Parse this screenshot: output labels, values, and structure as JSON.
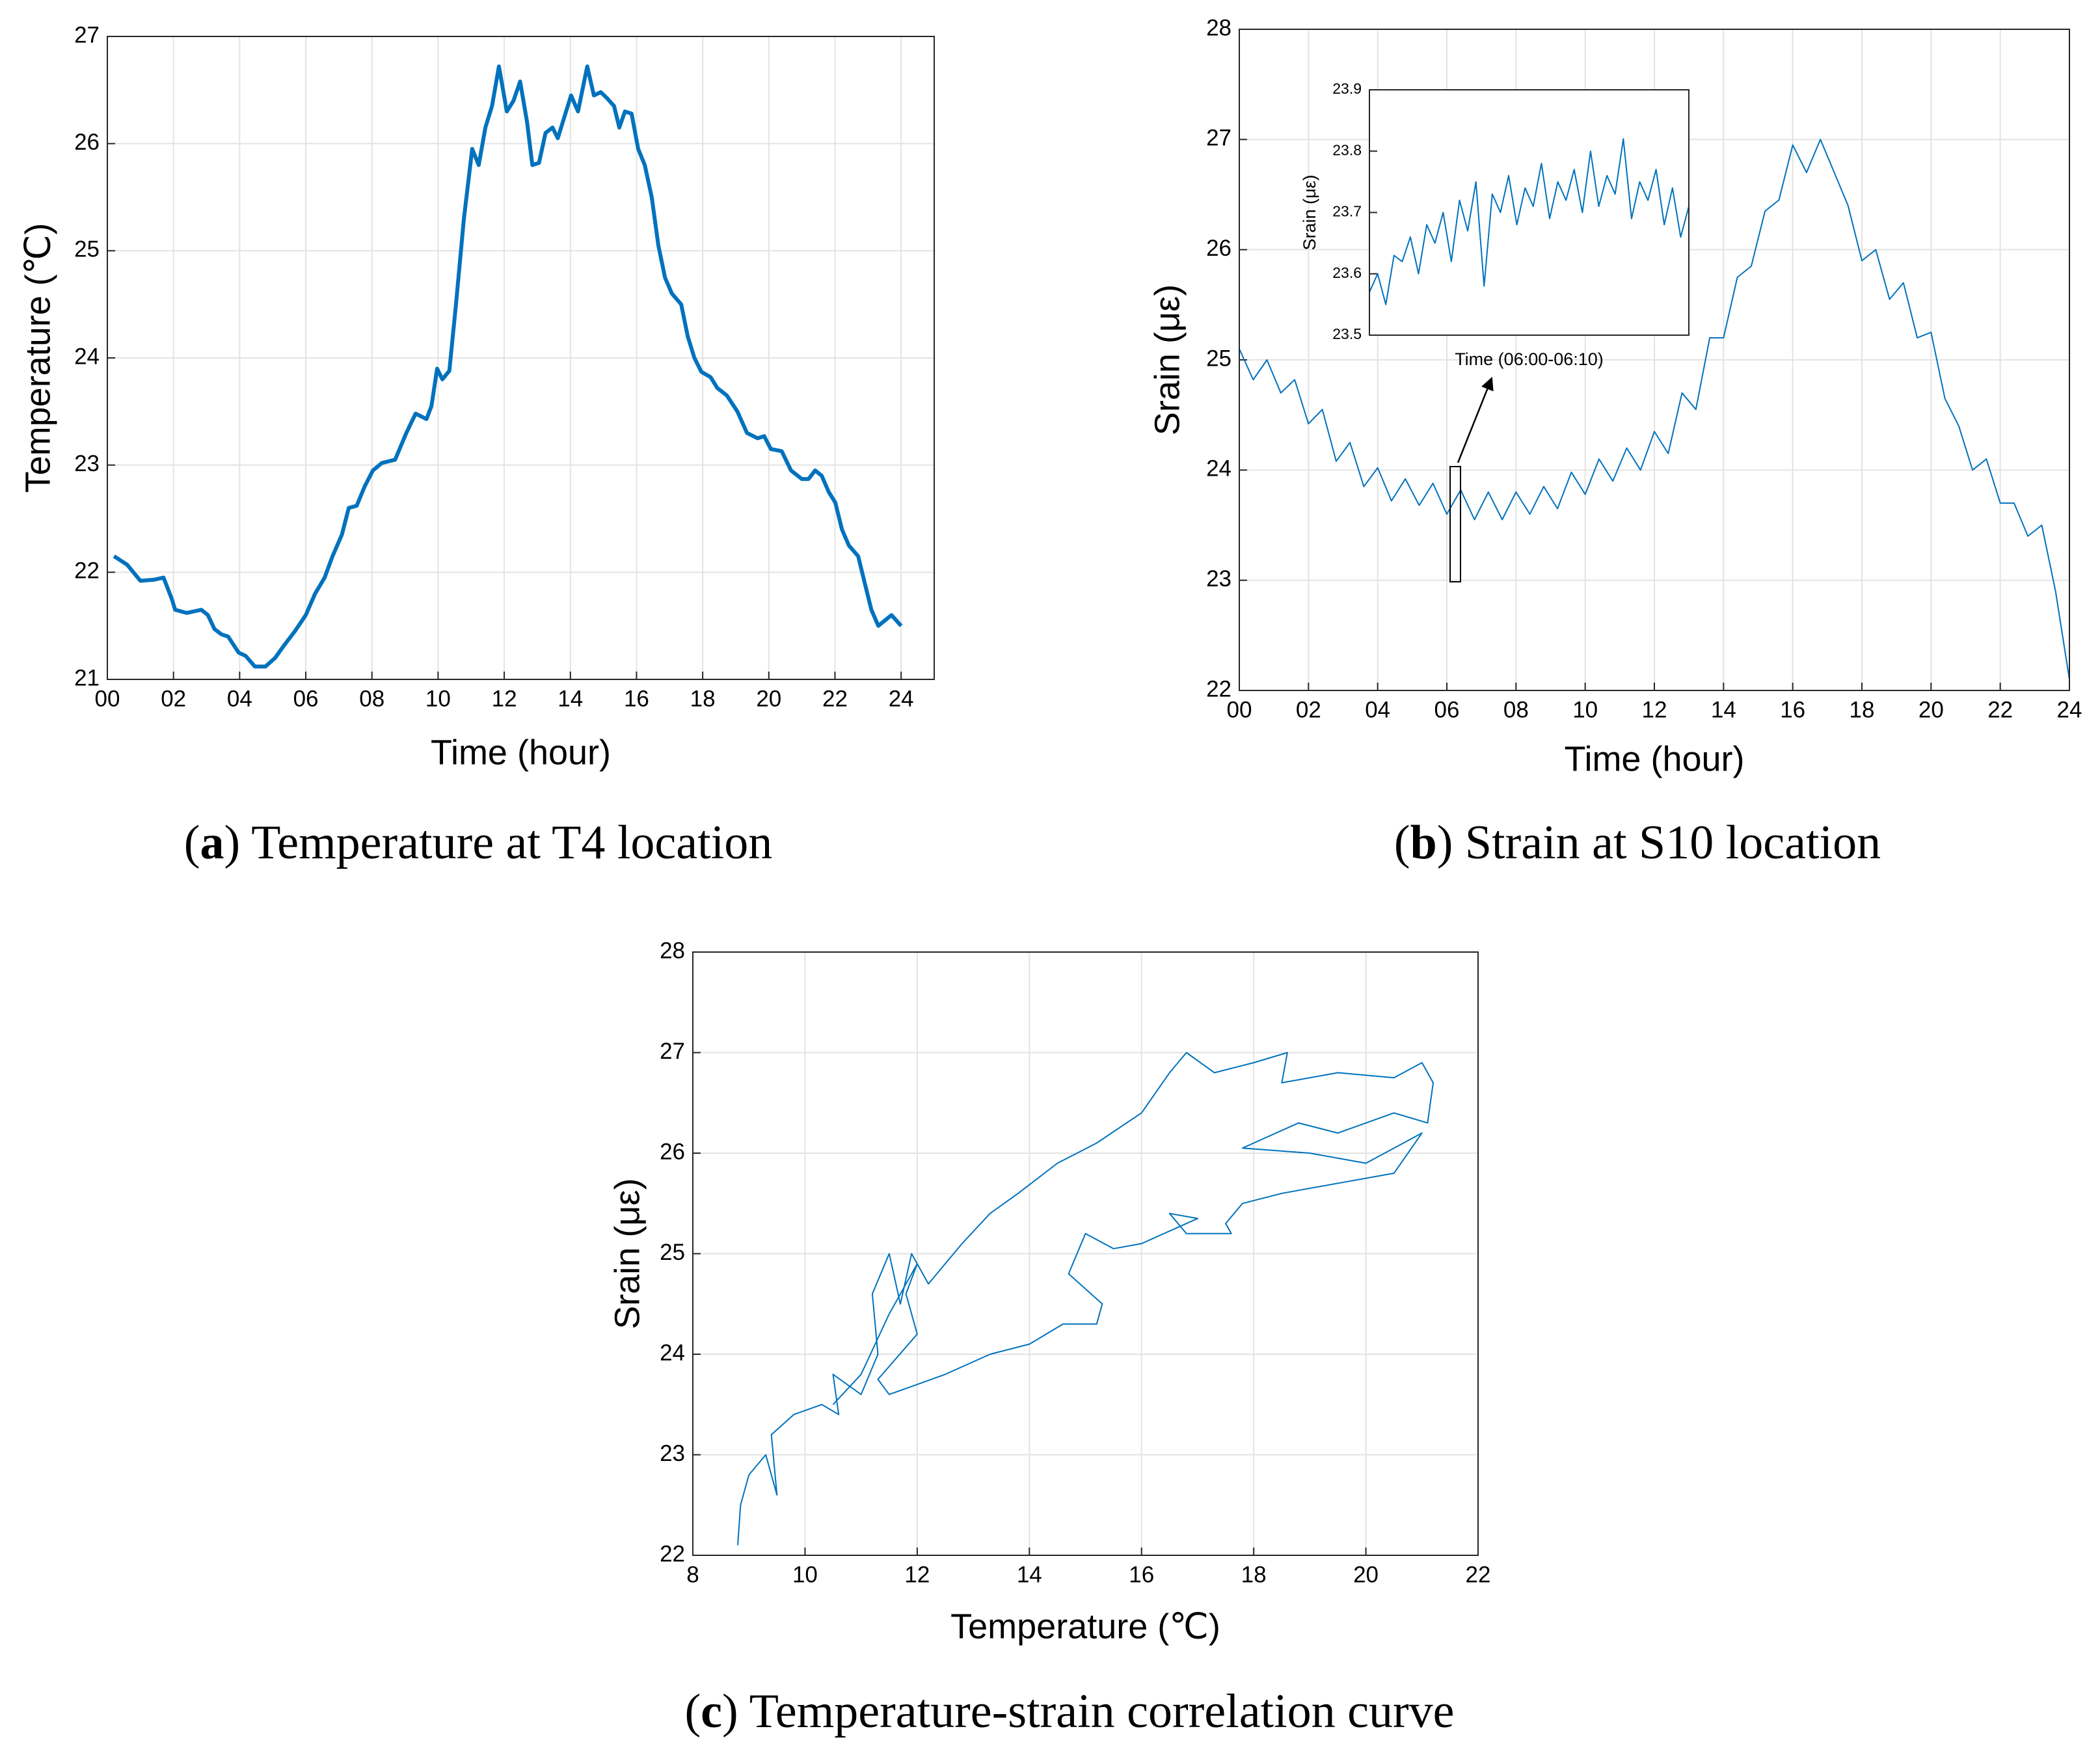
{
  "chart_data": [
    {
      "type": "line",
      "caption": [
        "(",
        "a",
        ") Temperature at T4 location"
      ],
      "xlabel": "Time (hour)",
      "ylabel": "Temperature (℃)",
      "color": "#0072bd",
      "grid": true,
      "xlim": [
        0,
        25
      ],
      "ylim": [
        21,
        27
      ],
      "xticks": [
        {
          "value": 0,
          "label": "00"
        },
        {
          "value": 2,
          "label": "02"
        },
        {
          "value": 4,
          "label": "04"
        },
        {
          "value": 6,
          "label": "06"
        },
        {
          "value": 8,
          "label": "08"
        },
        {
          "value": 10,
          "label": "10"
        },
        {
          "value": 12,
          "label": "12"
        },
        {
          "value": 14,
          "label": "14"
        },
        {
          "value": 16,
          "label": "16"
        },
        {
          "value": 18,
          "label": "18"
        },
        {
          "value": 20,
          "label": "20"
        },
        {
          "value": 22,
          "label": "22"
        },
        {
          "value": 24,
          "label": "24"
        }
      ],
      "yticks": [
        21,
        22,
        23,
        24,
        25,
        26,
        27
      ],
      "x": [
        0.2,
        0.6,
        1.0,
        1.4,
        1.7,
        1.95,
        2.05,
        2.4,
        2.84,
        3.04,
        3.24,
        3.45,
        3.65,
        3.97,
        4.18,
        4.46,
        4.78,
        5.07,
        5.35,
        5.67,
        6.0,
        6.28,
        6.57,
        6.81,
        7.09,
        7.3,
        7.54,
        7.78,
        8.03,
        8.3,
        8.7,
        9.04,
        9.32,
        9.65,
        9.8,
        9.97,
        10.13,
        10.34,
        10.54,
        10.78,
        11.03,
        11.23,
        11.43,
        11.63,
        11.84,
        12.08,
        12.28,
        12.48,
        12.69,
        12.85,
        13.05,
        13.25,
        13.46,
        13.62,
        13.82,
        14.02,
        14.23,
        14.43,
        14.51,
        14.71,
        14.92,
        15.12,
        15.32,
        15.48,
        15.65,
        15.85,
        16.05,
        16.25,
        16.46,
        16.66,
        16.86,
        17.07,
        17.35,
        17.55,
        17.75,
        17.96,
        18.24,
        18.44,
        18.73,
        19.05,
        19.34,
        19.66,
        19.86,
        20.06,
        20.39,
        20.67,
        21.0,
        21.2,
        21.4,
        21.6,
        21.81,
        22.01,
        22.21,
        22.42,
        22.7,
        22.9,
        23.1,
        23.31,
        23.51,
        23.71,
        24.0
      ],
      "values": [
        22.15,
        22.07,
        21.92,
        21.93,
        21.95,
        21.75,
        21.65,
        21.62,
        21.65,
        21.6,
        21.47,
        21.42,
        21.4,
        21.25,
        21.22,
        21.12,
        21.12,
        21.2,
        21.32,
        21.45,
        21.6,
        21.8,
        21.95,
        22.15,
        22.35,
        22.6,
        22.62,
        22.8,
        22.95,
        23.02,
        23.05,
        23.3,
        23.48,
        23.43,
        23.55,
        23.9,
        23.8,
        23.88,
        24.5,
        25.3,
        25.95,
        25.8,
        26.15,
        26.35,
        26.72,
        26.3,
        26.4,
        26.58,
        26.2,
        25.8,
        25.82,
        26.1,
        26.15,
        26.05,
        26.25,
        26.45,
        26.3,
        26.6,
        26.72,
        26.45,
        26.48,
        26.42,
        26.35,
        26.15,
        26.3,
        26.28,
        25.95,
        25.8,
        25.5,
        25.05,
        24.75,
        24.6,
        24.5,
        24.2,
        24.0,
        23.87,
        23.82,
        23.72,
        23.65,
        23.5,
        23.3,
        23.25,
        23.27,
        23.15,
        23.13,
        22.95,
        22.87,
        22.87,
        22.95,
        22.9,
        22.75,
        22.65,
        22.4,
        22.25,
        22.15,
        21.9,
        21.65,
        21.5,
        21.55,
        21.6,
        21.5
      ]
    },
    {
      "type": "line",
      "caption": [
        "(",
        "b",
        ") Strain at S10 location"
      ],
      "xlabel": "Time (hour)",
      "ylabel": "Srain (με)",
      "color": "#0072bd",
      "grid": true,
      "xlim": [
        0,
        24
      ],
      "ylim": [
        22,
        28
      ],
      "xticks": [
        {
          "value": 0,
          "label": "00"
        },
        {
          "value": 2,
          "label": "02"
        },
        {
          "value": 4,
          "label": "04"
        },
        {
          "value": 6,
          "label": "06"
        },
        {
          "value": 8,
          "label": "08"
        },
        {
          "value": 10,
          "label": "10"
        },
        {
          "value": 12,
          "label": "12"
        },
        {
          "value": 14,
          "label": "14"
        },
        {
          "value": 16,
          "label": "16"
        },
        {
          "value": 18,
          "label": "18"
        },
        {
          "value": 20,
          "label": "20"
        },
        {
          "value": 22,
          "label": "22"
        },
        {
          "value": 24,
          "label": "24"
        }
      ],
      "yticks": [
        22,
        23,
        24,
        25,
        26,
        27,
        28
      ],
      "x": [
        0,
        0.4,
        0.8,
        1.2,
        1.6,
        2.0,
        2.4,
        2.8,
        3.2,
        3.6,
        4.0,
        4.4,
        4.8,
        5.2,
        5.6,
        6.0,
        6.4,
        6.8,
        7.2,
        7.6,
        8.0,
        8.4,
        8.8,
        9.2,
        9.6,
        10.0,
        10.4,
        10.8,
        11.2,
        11.6,
        12.0,
        12.4,
        12.8,
        13.2,
        13.6,
        14.0,
        14.4,
        14.8,
        15.2,
        15.6,
        16.0,
        16.4,
        16.8,
        17.2,
        17.6,
        18.0,
        18.4,
        18.8,
        19.2,
        19.6,
        20.0,
        20.4,
        20.8,
        21.2,
        21.6,
        22.0,
        22.4,
        22.8,
        23.2,
        23.6,
        24.0
      ],
      "values": [
        25.1,
        24.82,
        25.0,
        24.7,
        24.82,
        24.42,
        24.55,
        24.08,
        24.25,
        23.85,
        24.02,
        23.72,
        23.92,
        23.68,
        23.88,
        23.6,
        23.82,
        23.55,
        23.8,
        23.55,
        23.8,
        23.6,
        23.85,
        23.65,
        23.98,
        23.78,
        24.1,
        23.9,
        24.2,
        24.0,
        24.35,
        24.15,
        24.7,
        24.55,
        25.2,
        25.2,
        25.75,
        25.85,
        26.35,
        26.45,
        26.95,
        26.7,
        27.0,
        26.7,
        26.4,
        25.9,
        26.0,
        25.55,
        25.7,
        25.2,
        25.25,
        24.65,
        24.4,
        24.0,
        24.1,
        23.7,
        23.7,
        23.4,
        23.5,
        22.9,
        22.1
      ]
    },
    {
      "type": "line",
      "xlabel": "Time (06:00-06:10)",
      "ylabel": "Srain (με)",
      "color": "#0072bd",
      "ylim": [
        23.5,
        23.9
      ],
      "yticks": [
        23.5,
        23.6,
        23.7,
        23.8,
        23.9
      ],
      "values": [
        23.57,
        23.6,
        23.55,
        23.63,
        23.62,
        23.66,
        23.6,
        23.68,
        23.65,
        23.7,
        23.62,
        23.72,
        23.67,
        23.75,
        23.58,
        23.73,
        23.7,
        23.76,
        23.68,
        23.74,
        23.71,
        23.78,
        23.69,
        23.75,
        23.72,
        23.77,
        23.7,
        23.8,
        23.71,
        23.76,
        23.73,
        23.82,
        23.69,
        23.75,
        23.72,
        23.77,
        23.68,
        23.74,
        23.66,
        23.71
      ]
    },
    {
      "type": "line",
      "caption": [
        "(",
        "c",
        ") Temperature-strain correlation curve"
      ],
      "xlabel": "Temperature (℃)",
      "ylabel": "Srain (με)",
      "color": "#0072bd",
      "grid": true,
      "xlim": [
        8,
        22
      ],
      "ylim": [
        22,
        28
      ],
      "xticks": [
        8,
        10,
        12,
        14,
        16,
        18,
        20,
        22
      ],
      "yticks": [
        22,
        23,
        24,
        25,
        26,
        27,
        28
      ],
      "x": [
        8.8,
        8.85,
        9.0,
        9.3,
        9.5,
        9.4,
        9.8,
        10.3,
        10.6,
        10.5,
        11.0,
        11.3,
        11.2,
        11.5,
        11.7,
        11.9,
        12.2,
        12.8,
        13.3,
        13.8,
        14.5,
        15.2,
        16.0,
        16.5,
        16.8,
        17.3,
        18.0,
        18.6,
        18.5,
        19.5,
        20.5,
        21.0,
        21.2,
        21.1,
        20.5,
        19.5,
        18.8,
        18.0,
        17.8,
        19.0,
        20.0,
        21.0,
        20.5,
        19.5,
        18.5,
        17.8,
        17.5,
        17.6,
        16.8,
        16.5,
        17.0,
        16.0,
        15.5,
        15.0,
        14.7,
        15.3,
        15.2,
        14.6,
        14.0,
        13.3,
        12.5,
        12.0,
        11.5,
        11.3,
        12.0,
        11.8,
        12.0,
        11.5,
        11.0,
        10.5
      ],
      "values": [
        22.1,
        22.5,
        22.8,
        23.0,
        22.6,
        23.2,
        23.4,
        23.5,
        23.4,
        23.8,
        23.6,
        24.0,
        24.6,
        25.0,
        24.5,
        25.0,
        24.7,
        25.1,
        25.4,
        25.6,
        25.9,
        26.1,
        26.4,
        26.8,
        27.0,
        26.8,
        26.9,
        27.0,
        26.7,
        26.8,
        26.75,
        26.9,
        26.7,
        26.3,
        26.4,
        26.2,
        26.3,
        26.1,
        26.05,
        26.0,
        25.9,
        26.2,
        25.8,
        25.7,
        25.6,
        25.5,
        25.3,
        25.2,
        25.2,
        25.4,
        25.35,
        25.1,
        25.05,
        25.2,
        24.8,
        24.5,
        24.3,
        24.3,
        24.1,
        24.0,
        23.8,
        23.7,
        23.6,
        23.75,
        24.2,
        24.6,
        24.9,
        24.4,
        23.8,
        23.5
      ]
    }
  ]
}
